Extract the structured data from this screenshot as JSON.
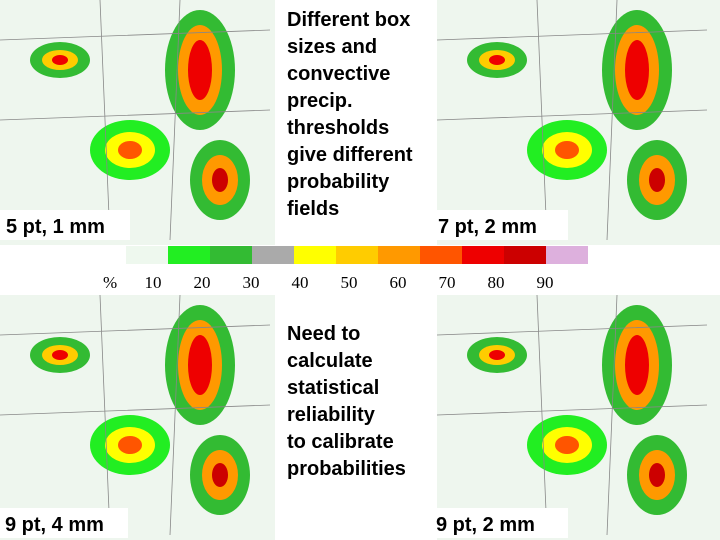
{
  "panels": [
    {
      "label": "5 pt, 1 mm"
    },
    {
      "label": "7 pt, 2 mm"
    },
    {
      "label": "9 pt, 4 mm"
    },
    {
      "label": "9 pt, 2 mm"
    }
  ],
  "top_text": [
    "Different box",
    "sizes and",
    "convective",
    "precip.",
    "thresholds",
    "give different",
    "probability",
    "fields"
  ],
  "bottom_text": [
    "Need to",
    "calculate",
    "statistical",
    "reliability",
    "to calibrate",
    "probabilities"
  ],
  "legend": {
    "unit": "%",
    "ticks": [
      10,
      20,
      30,
      40,
      50,
      60,
      70,
      80,
      90
    ],
    "colors": [
      "#eef8ee",
      "#22ee22",
      "#33bb33",
      "#aaaaaa",
      "#ffff00",
      "#ffcc00",
      "#ff9900",
      "#ff5500",
      "#ee0000",
      "#cc0000",
      "#ddb0dd"
    ]
  }
}
